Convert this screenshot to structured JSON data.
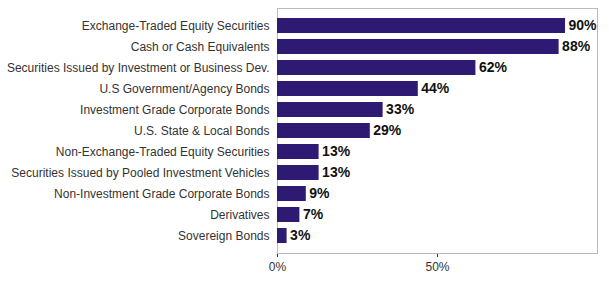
{
  "chart_data": {
    "type": "bar",
    "orientation": "horizontal",
    "categories": [
      "Exchange-Traded Equity Securities",
      "Cash or Cash Equivalents",
      "Securities Issued by Investment or Business Dev.",
      "U.S Government/Agency Bonds",
      "Investment Grade Corporate Bonds",
      "U.S. State & Local Bonds",
      "Non-Exchange-Traded Equity Securities",
      "Securities Issued by Pooled Investment Vehicles",
      "Non-Investment Grade Corporate Bonds",
      "Derivatives",
      "Sovereign Bonds"
    ],
    "values": [
      90,
      88,
      62,
      44,
      33,
      29,
      13,
      13,
      9,
      7,
      3
    ],
    "value_labels": [
      "90%",
      "88%",
      "62%",
      "44%",
      "33%",
      "29%",
      "13%",
      "13%",
      "9%",
      "7%",
      "3%"
    ],
    "color": "#2e1a73",
    "xlim": [
      0,
      100
    ],
    "xticks": [
      {
        "value": 0,
        "label": "0%"
      },
      {
        "value": 50,
        "label": "50%"
      }
    ],
    "grid": false,
    "data_labels": true
  }
}
